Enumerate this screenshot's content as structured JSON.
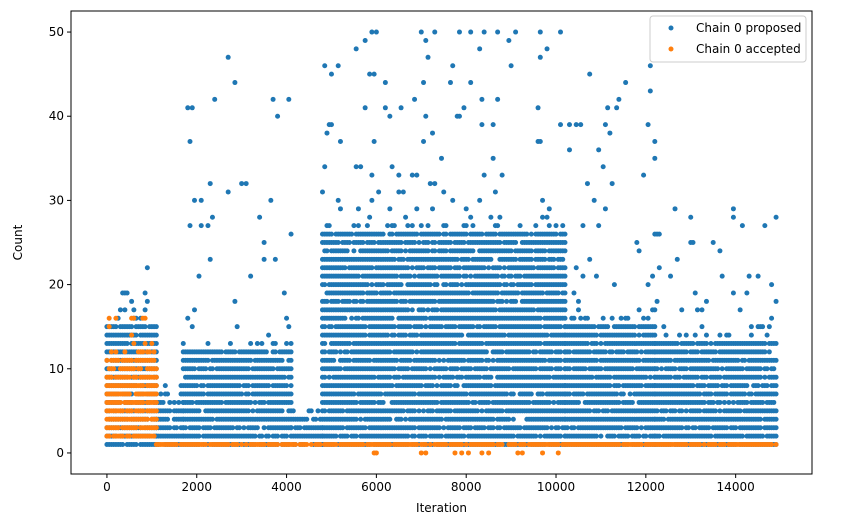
{
  "chart_data": {
    "type": "scatter",
    "title": "",
    "xlabel": "Iteration",
    "ylabel": "Count",
    "xlim": [
      -800,
      15700
    ],
    "ylim": [
      -2.5,
      52.5
    ],
    "xticks": [
      0,
      2000,
      4000,
      6000,
      8000,
      10000,
      12000,
      14000
    ],
    "xtick_labels": [
      "0",
      "2000",
      "4000",
      "6000",
      "8000",
      "10000",
      "12000",
      "14000"
    ],
    "yticks": [
      0,
      10,
      20,
      30,
      40,
      50
    ],
    "ytick_labels": [
      "0",
      "10",
      "20",
      "30",
      "40",
      "50"
    ],
    "grid": false,
    "legend_position": "top-right",
    "series": [
      {
        "name": "Chain 0 proposed",
        "color": "#1f77b4",
        "bands": [
          {
            "x_start": 0,
            "x_end": 1100,
            "y_min": 1,
            "y_max": 15,
            "sparse_max": 22
          },
          {
            "x_start": 1100,
            "x_end": 1700,
            "y_min": 1,
            "y_max": 5,
            "sparse_max": 8
          },
          {
            "x_start": 1700,
            "x_end": 4100,
            "y_min": 1,
            "y_max": 12,
            "sparse_max": 47
          },
          {
            "x_start": 4100,
            "x_end": 4800,
            "y_min": 1,
            "y_max": 3,
            "sparse_max": 5
          },
          {
            "x_start": 4800,
            "x_end": 10200,
            "y_min": 1,
            "y_max": 26,
            "sparse_max": 50
          },
          {
            "x_start": 10200,
            "x_end": 12200,
            "y_min": 1,
            "y_max": 15,
            "sparse_max": 46
          },
          {
            "x_start": 12200,
            "x_end": 14900,
            "y_min": 1,
            "y_max": 13,
            "sparse_max": 29
          }
        ],
        "outliers": [
          {
            "x": 2700,
            "y": 47
          },
          {
            "x": 3800,
            "y": 40
          },
          {
            "x": 4050,
            "y": 42
          },
          {
            "x": 5900,
            "y": 50
          },
          {
            "x": 6000,
            "y": 50
          },
          {
            "x": 7000,
            "y": 50
          },
          {
            "x": 7300,
            "y": 50
          },
          {
            "x": 7850,
            "y": 50
          },
          {
            "x": 8100,
            "y": 50
          },
          {
            "x": 8700,
            "y": 50
          },
          {
            "x": 9100,
            "y": 50
          },
          {
            "x": 9650,
            "y": 50
          },
          {
            "x": 10100,
            "y": 50
          },
          {
            "x": 12100,
            "y": 46
          },
          {
            "x": 12050,
            "y": 39
          },
          {
            "x": 13950,
            "y": 29
          },
          {
            "x": 14900,
            "y": 28
          }
        ]
      },
      {
        "name": "Chain 0 accepted",
        "color": "#ff7f0e",
        "bands": [
          {
            "x_start": 0,
            "x_end": 1100,
            "y_min": 2,
            "y_max": 11,
            "sparse_max": 16
          },
          {
            "x_start": 1100,
            "x_end": 14900,
            "y_min": 1,
            "y_max": 1,
            "sparse_max": 1
          }
        ],
        "outliers": [
          {
            "x": 5950,
            "y": 0
          },
          {
            "x": 6000,
            "y": 0
          },
          {
            "x": 7000,
            "y": 0
          },
          {
            "x": 7100,
            "y": 0
          },
          {
            "x": 7750,
            "y": 0
          },
          {
            "x": 7900,
            "y": 0
          },
          {
            "x": 8050,
            "y": 0
          },
          {
            "x": 8350,
            "y": 0
          },
          {
            "x": 8500,
            "y": 0
          },
          {
            "x": 9150,
            "y": 0
          },
          {
            "x": 9250,
            "y": 0
          },
          {
            "x": 9700,
            "y": 0
          },
          {
            "x": 10050,
            "y": 0
          }
        ]
      }
    ]
  }
}
